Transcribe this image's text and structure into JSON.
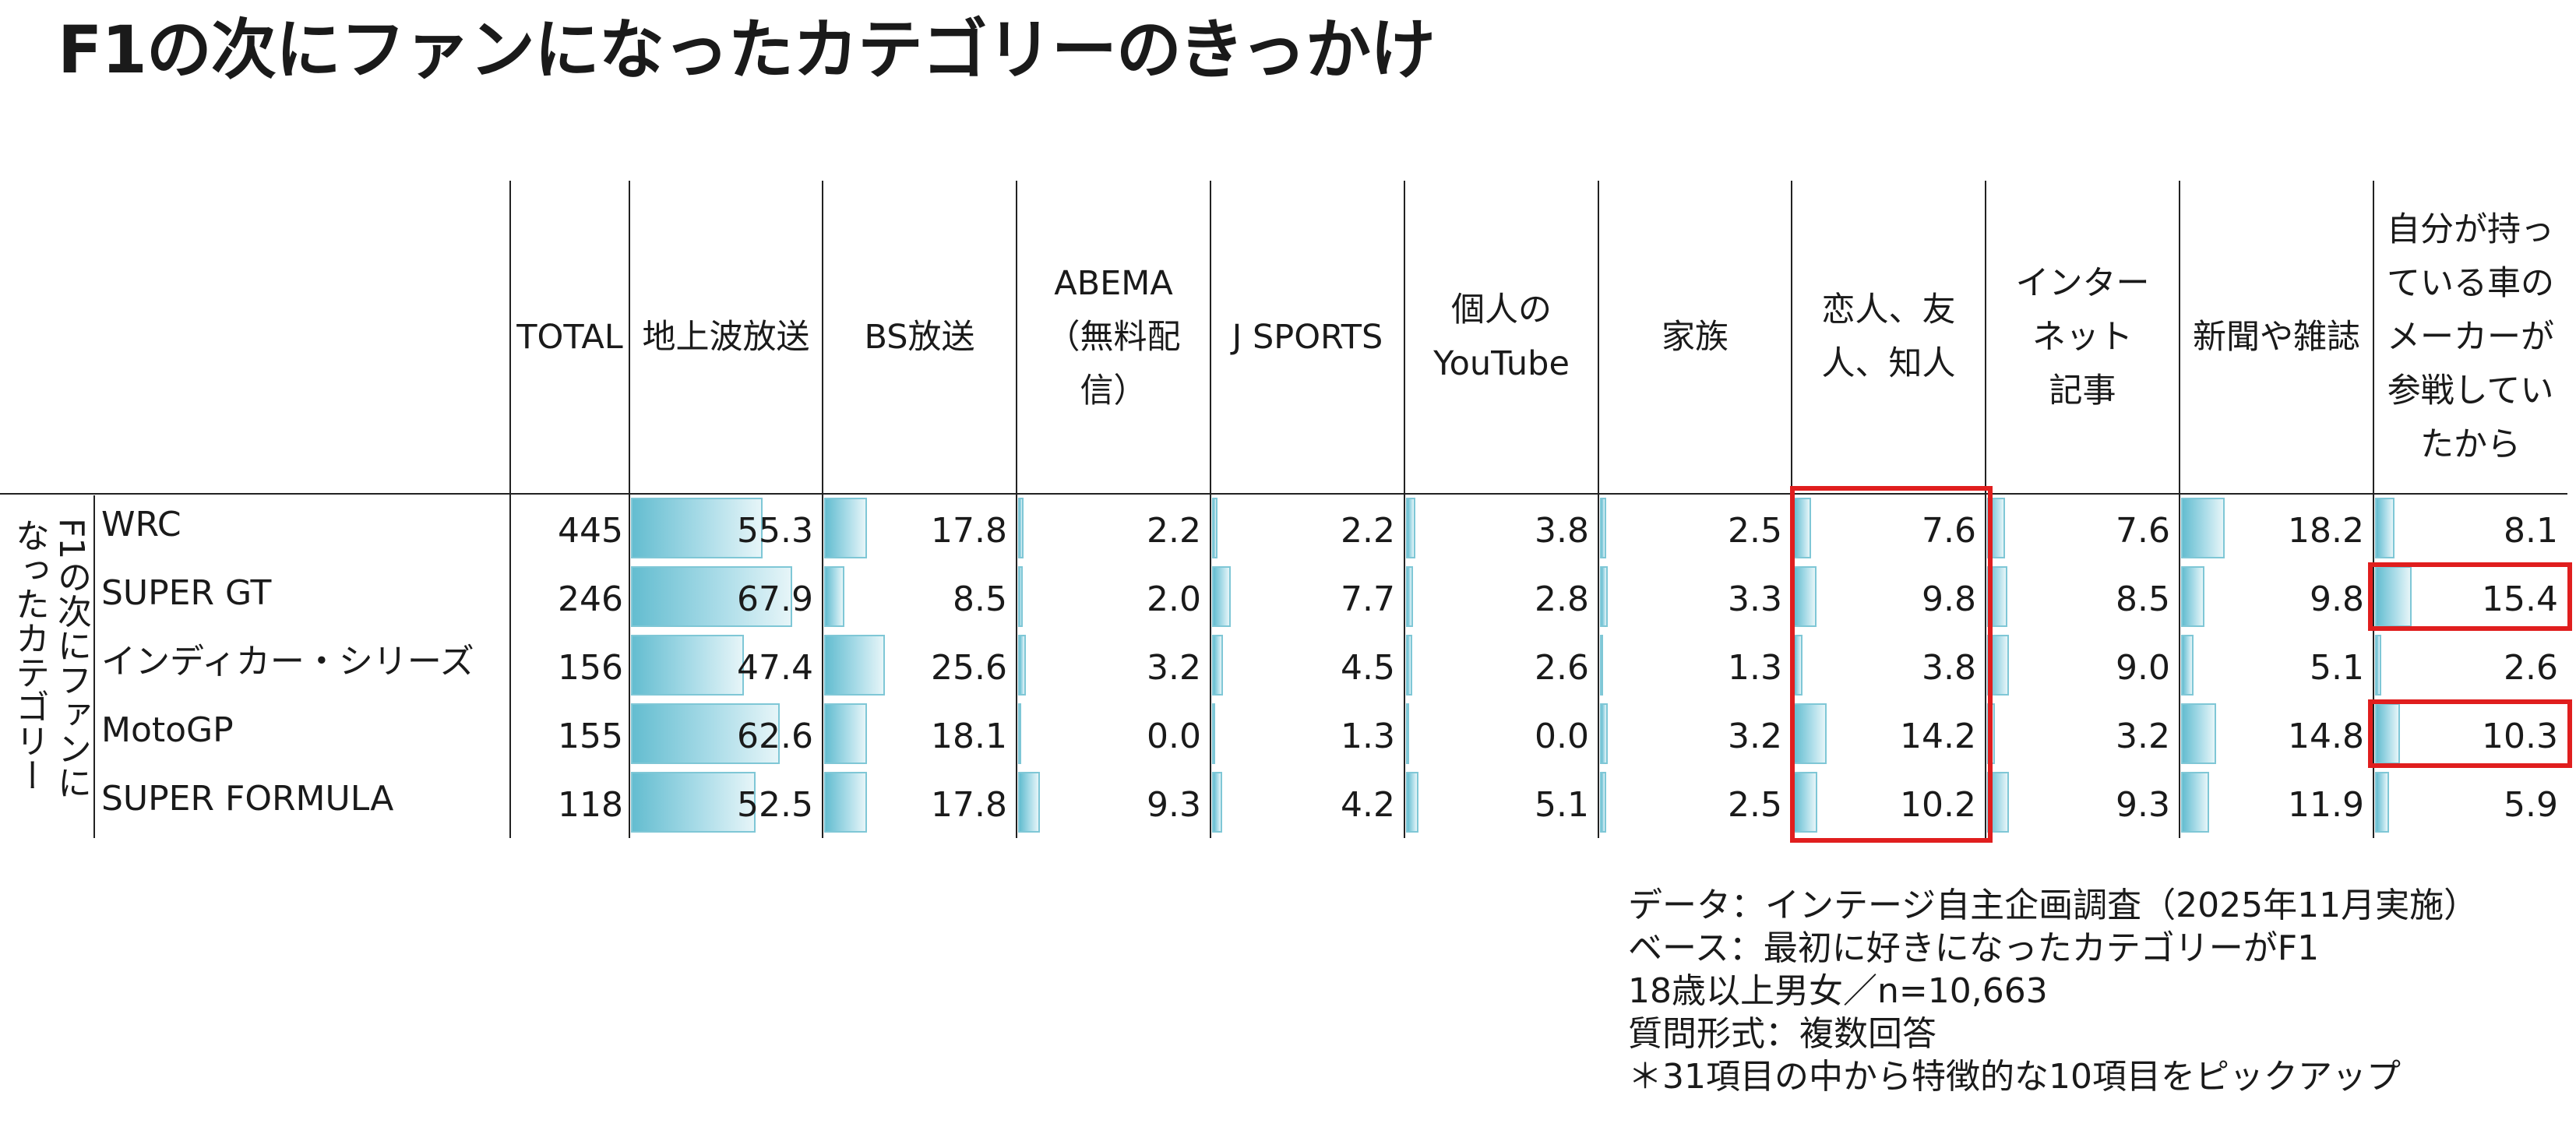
{
  "title": "F1の次にファンになったカテゴリーのきっかけ",
  "chart_data": {
    "type": "table",
    "title": "F1の次にファンになったカテゴリーのきっかけ",
    "group_label": "F1の次にファンに\nなったカテゴリー",
    "columns": [
      "TOTAL",
      "地上波放送",
      "BS放送",
      "ABEMA\n（無料配\n信）",
      "J SPORTS",
      "個人の\nYouTube",
      "家族",
      "恋人、友\n人、知人",
      "インター\nネット\n記事",
      "新聞や雑誌",
      "自分が持っ\nている車の\nメーカーが\n参戦してい\nたから"
    ],
    "rows": [
      {
        "name": "WRC",
        "total": 445,
        "values": [
          55.3,
          17.8,
          2.2,
          2.2,
          3.8,
          2.5,
          7.6,
          7.6,
          18.2,
          8.1
        ]
      },
      {
        "name": "SUPER GT",
        "total": 246,
        "values": [
          67.9,
          8.5,
          2.0,
          7.7,
          2.8,
          3.3,
          9.8,
          8.5,
          9.8,
          15.4
        ]
      },
      {
        "name": "インディカー・シリーズ",
        "total": 156,
        "values": [
          47.4,
          25.6,
          3.2,
          4.5,
          2.6,
          1.3,
          3.8,
          9.0,
          5.1,
          2.6
        ]
      },
      {
        "name": "MotoGP",
        "total": 155,
        "values": [
          62.6,
          18.1,
          0.0,
          1.3,
          0.0,
          3.2,
          14.2,
          3.2,
          14.8,
          10.3
        ]
      },
      {
        "name": "SUPER FORMULA",
        "total": 118,
        "values": [
          52.5,
          17.8,
          9.3,
          4.2,
          5.1,
          2.5,
          10.2,
          9.3,
          11.9,
          5.9
        ]
      }
    ],
    "bar_max": 80,
    "highlight_color": "#e01e1e",
    "bar_color": "#64bdd0"
  },
  "notes": [
    "データ：インテージ自主企画調査（2025年11月実施）",
    "ベース：最初に好きになったカテゴリーがF1",
    "18歳以上男女／n=10,663",
    "質問形式：複数回答",
    "＊31項目の中から特徴的な10項目をピックアップ"
  ]
}
